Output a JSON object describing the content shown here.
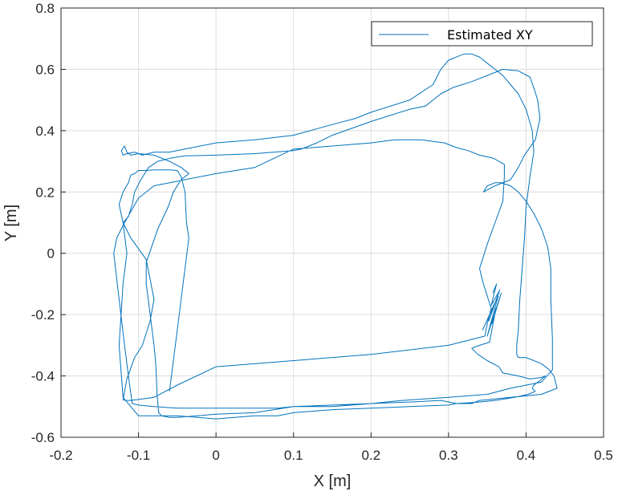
{
  "chart_data": {
    "type": "line",
    "title": "",
    "xlabel": "X [m]",
    "ylabel": "Y [m]",
    "xlim": [
      -0.2,
      0.5
    ],
    "ylim": [
      -0.6,
      0.8
    ],
    "xticks": [
      "-0.2",
      "-0.1",
      "0",
      "0.1",
      "0.2",
      "0.3",
      "0.4",
      "0.5"
    ],
    "yticks": [
      "-0.6",
      "-0.4",
      "-0.2",
      "0",
      "0.2",
      "0.4",
      "0.6",
      "0.8"
    ],
    "grid": true,
    "legend_position": "top-right",
    "colors": {
      "line": "#0072BD",
      "grid": "#dcdcdc",
      "axes": "#262626"
    },
    "series": [
      {
        "name": "Estimated XY",
        "x": [
          0.357,
          0.362,
          0.355,
          0.366,
          0.352,
          0.36,
          0.344,
          0.364,
          0.35,
          0.368,
          0.356,
          0.361,
          0.353,
          0.34,
          0.33,
          0.338,
          0.35,
          0.365,
          0.37,
          0.38,
          0.39,
          0.405,
          0.42,
          0.425,
          0.418,
          0.41,
          0.408,
          0.412,
          0.403,
          0.385,
          0.36,
          0.34,
          0.31,
          0.29,
          0.25,
          0.2,
          0.15,
          0.1,
          0.08,
          0.0,
          -0.05,
          -0.08,
          -0.1,
          -0.108,
          -0.112,
          -0.118,
          -0.125,
          -0.132,
          -0.128,
          -0.118,
          -0.1,
          -0.08,
          0.0,
          0.05,
          0.1,
          0.15,
          0.2,
          0.23,
          0.25,
          0.265,
          0.28,
          0.295,
          0.31,
          0.325,
          0.34,
          0.358,
          0.372,
          0.372,
          0.37,
          0.36,
          0.35,
          0.345,
          0.34,
          0.345,
          0.355,
          0.35,
          0.347,
          0.3,
          0.2,
          0.1,
          0.0,
          -0.05,
          -0.08,
          -0.095,
          -0.11,
          -0.115,
          -0.12,
          -0.115,
          -0.105,
          -0.095,
          -0.085,
          -0.08,
          -0.09,
          -0.11,
          -0.12,
          -0.113,
          -0.108,
          -0.105,
          -0.097,
          -0.087,
          -0.075,
          -0.06,
          -0.04,
          0.0,
          0.05,
          0.1,
          0.11,
          0.13,
          0.15,
          0.2,
          0.25,
          0.27,
          0.29,
          0.305,
          0.33,
          0.35,
          0.37,
          0.39,
          0.405,
          0.41,
          0.415,
          0.418,
          0.412,
          0.398,
          0.39,
          0.38,
          0.36,
          0.345,
          0.35,
          0.36,
          0.368,
          0.38,
          0.39,
          0.4,
          0.41,
          0.42,
          0.428,
          0.432,
          0.432,
          0.434,
          0.434,
          0.42,
          0.38,
          0.35,
          0.3,
          0.24,
          0.2,
          0.15,
          0.1,
          0.05,
          0.0,
          -0.05,
          -0.06,
          -0.07,
          -0.074,
          -0.076,
          -0.077,
          -0.078,
          -0.08,
          -0.085,
          -0.09,
          -0.09,
          -0.075,
          -0.062,
          -0.055,
          -0.045,
          -0.04,
          -0.035,
          -0.045,
          -0.06,
          -0.08,
          -0.1,
          -0.11,
          -0.115,
          -0.118,
          -0.122,
          -0.12,
          -0.115,
          -0.105,
          -0.095,
          -0.08,
          -0.06,
          0.0,
          0.05,
          0.1,
          0.15,
          0.18,
          0.2,
          0.25,
          0.28,
          0.29,
          0.3,
          0.305,
          0.31,
          0.32,
          0.33,
          0.34,
          0.35,
          0.36,
          0.37,
          0.38,
          0.39,
          0.4,
          0.408,
          0.41,
          0.405,
          0.4,
          0.398,
          0.395,
          0.392,
          0.39,
          0.388,
          0.388,
          0.39,
          0.4,
          0.42,
          0.43,
          0.436,
          0.44,
          0.42,
          0.38,
          0.36,
          0.34,
          0.33,
          0.31,
          0.3,
          0.25,
          0.2,
          0.15,
          0.1,
          0.08,
          0.05,
          0.0,
          -0.05,
          -0.1,
          -0.12,
          -0.125,
          -0.12,
          -0.115,
          -0.12,
          -0.125,
          -0.12,
          -0.113,
          -0.11,
          -0.105,
          -0.1,
          -0.09,
          -0.08,
          -0.07,
          -0.06,
          -0.05,
          -0.045,
          -0.04,
          -0.038,
          -0.035,
          -0.04,
          -0.045,
          -0.05,
          -0.055,
          -0.06
        ],
        "y": [
          -0.13,
          -0.1,
          -0.17,
          -0.12,
          -0.22,
          -0.16,
          -0.25,
          -0.14,
          -0.27,
          -0.13,
          -0.23,
          -0.18,
          -0.29,
          -0.3,
          -0.31,
          -0.33,
          -0.35,
          -0.37,
          -0.39,
          -0.395,
          -0.4,
          -0.41,
          -0.405,
          -0.4,
          -0.415,
          -0.43,
          -0.44,
          -0.45,
          -0.46,
          -0.47,
          -0.48,
          -0.485,
          -0.49,
          -0.48,
          -0.485,
          -0.49,
          -0.495,
          -0.5,
          -0.505,
          -0.505,
          -0.505,
          -0.5,
          -0.495,
          -0.49,
          -0.42,
          -0.3,
          -0.15,
          0.0,
          0.05,
          0.1,
          0.18,
          0.22,
          0.26,
          0.28,
          0.34,
          0.35,
          0.36,
          0.37,
          0.37,
          0.37,
          0.365,
          0.36,
          0.345,
          0.335,
          0.32,
          0.31,
          0.29,
          0.25,
          0.17,
          0.1,
          0.03,
          -0.01,
          -0.05,
          -0.1,
          -0.18,
          -0.23,
          -0.27,
          -0.3,
          -0.33,
          -0.35,
          -0.37,
          -0.43,
          -0.47,
          -0.475,
          -0.48,
          -0.48,
          -0.478,
          -0.41,
          -0.34,
          -0.3,
          -0.22,
          -0.15,
          -0.02,
          0.05,
          0.1,
          0.12,
          0.16,
          0.2,
          0.24,
          0.28,
          0.3,
          0.31,
          0.318,
          0.32,
          0.325,
          0.335,
          0.34,
          0.36,
          0.385,
          0.43,
          0.47,
          0.48,
          0.52,
          0.54,
          0.56,
          0.58,
          0.6,
          0.595,
          0.575,
          0.54,
          0.5,
          0.44,
          0.37,
          0.32,
          0.28,
          0.24,
          0.22,
          0.2,
          0.22,
          0.23,
          0.23,
          0.22,
          0.2,
          0.17,
          0.13,
          0.08,
          0.02,
          -0.05,
          -0.15,
          -0.28,
          -0.38,
          -0.42,
          -0.44,
          -0.46,
          -0.47,
          -0.48,
          -0.49,
          -0.5,
          -0.5,
          -0.52,
          -0.525,
          -0.535,
          -0.535,
          -0.53,
          -0.52,
          -0.46,
          -0.4,
          -0.35,
          -0.3,
          -0.2,
          -0.1,
          -0.03,
          0.08,
          0.15,
          0.2,
          0.24,
          0.25,
          0.26,
          0.28,
          0.3,
          0.32,
          0.325,
          0.32,
          0.33,
          0.35,
          0.335,
          0.32,
          0.325,
          0.33,
          0.32,
          0.33,
          0.33,
          0.36,
          0.37,
          0.385,
          0.42,
          0.44,
          0.46,
          0.5,
          0.55,
          0.6,
          0.63,
          0.635,
          0.64,
          0.65,
          0.65,
          0.64,
          0.62,
          0.6,
          0.58,
          0.55,
          0.52,
          0.47,
          0.4,
          0.33,
          0.25,
          0.15,
          0.05,
          -0.05,
          -0.15,
          -0.25,
          -0.3,
          -0.33,
          -0.34,
          -0.34,
          -0.36,
          -0.38,
          -0.4,
          -0.44,
          -0.46,
          -0.47,
          -0.475,
          -0.48,
          -0.49,
          -0.49,
          -0.495,
          -0.5,
          -0.505,
          -0.51,
          -0.52,
          -0.53,
          -0.53,
          -0.54,
          -0.53,
          -0.53,
          -0.47,
          -0.3,
          -0.1,
          0.0,
          0.1,
          0.16,
          0.2,
          0.23,
          0.255,
          0.26,
          0.27,
          0.27,
          0.272,
          0.272,
          0.272,
          0.27,
          0.25,
          0.2,
          0.1,
          0.05,
          -0.05,
          -0.15,
          -0.25,
          -0.35,
          -0.45
        ]
      }
    ]
  }
}
